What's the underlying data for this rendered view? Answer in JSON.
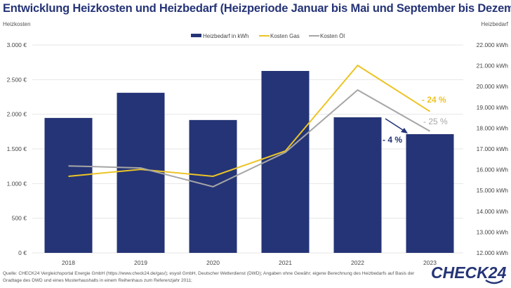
{
  "title": "Entwicklung Heizkosten und Heizbedarf (Heizperiode Januar bis Mai und September bis Dezember)",
  "source": "Quelle: CHECK24 Vergleichsportal Energie GmbH (https://www.check24.de/gas/); esyoil GmbH, Deutscher Wetterdienst (DWD); Angaben ohne Gewähr; eigene Berechnung des Heizbedarfs auf Basis der Gradtage des DWD und eines Musterhaushalts in einem Reihenhaus zum Referenzjahr 2011;",
  "logo": {
    "text": "CHECK24"
  },
  "colors": {
    "navy": "#253476",
    "gas": "#ecc426",
    "oil": "#a6a6a6",
    "grid": "#e6e6e6"
  },
  "chart_data": {
    "type": "bar+line",
    "title": "Entwicklung Heizkosten und Heizbedarf (Heizperiode Januar bis Mai und September bis Dezember)",
    "categories": [
      "2018",
      "2019",
      "2020",
      "2021",
      "2022",
      "2023"
    ],
    "y_left": {
      "label": "Heizkosten",
      "range": [
        0,
        3000
      ],
      "ticks": [
        0,
        500,
        1000,
        1500,
        2000,
        2500,
        3000
      ],
      "tick_labels": [
        "0 €",
        "500 €",
        "1.000 €",
        "1.500 €",
        "2.000 €",
        "2.500 €",
        "3.000 €"
      ]
    },
    "y_right": {
      "label": "Heizbedarf",
      "range": [
        12000,
        22000
      ],
      "ticks": [
        12000,
        13000,
        14000,
        15000,
        16000,
        17000,
        18000,
        19000,
        20000,
        21000,
        22000
      ],
      "tick_labels": [
        "12.000 kWh",
        "13.000 kWh",
        "14.000 kWh",
        "15.000 kWh",
        "16.000 kWh",
        "17.000 kWh",
        "18.000 kWh",
        "19.000 kWh",
        "20.000 kWh",
        "21.000 kWh",
        "22.000 kWh"
      ]
    },
    "grid": true,
    "legend_position": "top-center",
    "series": [
      {
        "name": "Heizbedarf in kWh",
        "type": "bar",
        "axis": "right",
        "values": [
          18490,
          19700,
          18390,
          20750,
          18520,
          17710
        ]
      },
      {
        "name": "Kosten Gas",
        "type": "line",
        "axis": "left",
        "values": [
          1105,
          1205,
          1105,
          1470,
          2705,
          2040
        ]
      },
      {
        "name": "Kosten Öl",
        "type": "line",
        "axis": "left",
        "values": [
          1255,
          1225,
          955,
          1450,
          2350,
          1755
        ]
      }
    ],
    "annotations": [
      {
        "text": "- 24 %",
        "series": "Kosten Gas"
      },
      {
        "text": "- 25 %",
        "series": "Kosten Öl"
      },
      {
        "text": "- 4 %",
        "series": "Heizbedarf in kWh"
      }
    ]
  }
}
